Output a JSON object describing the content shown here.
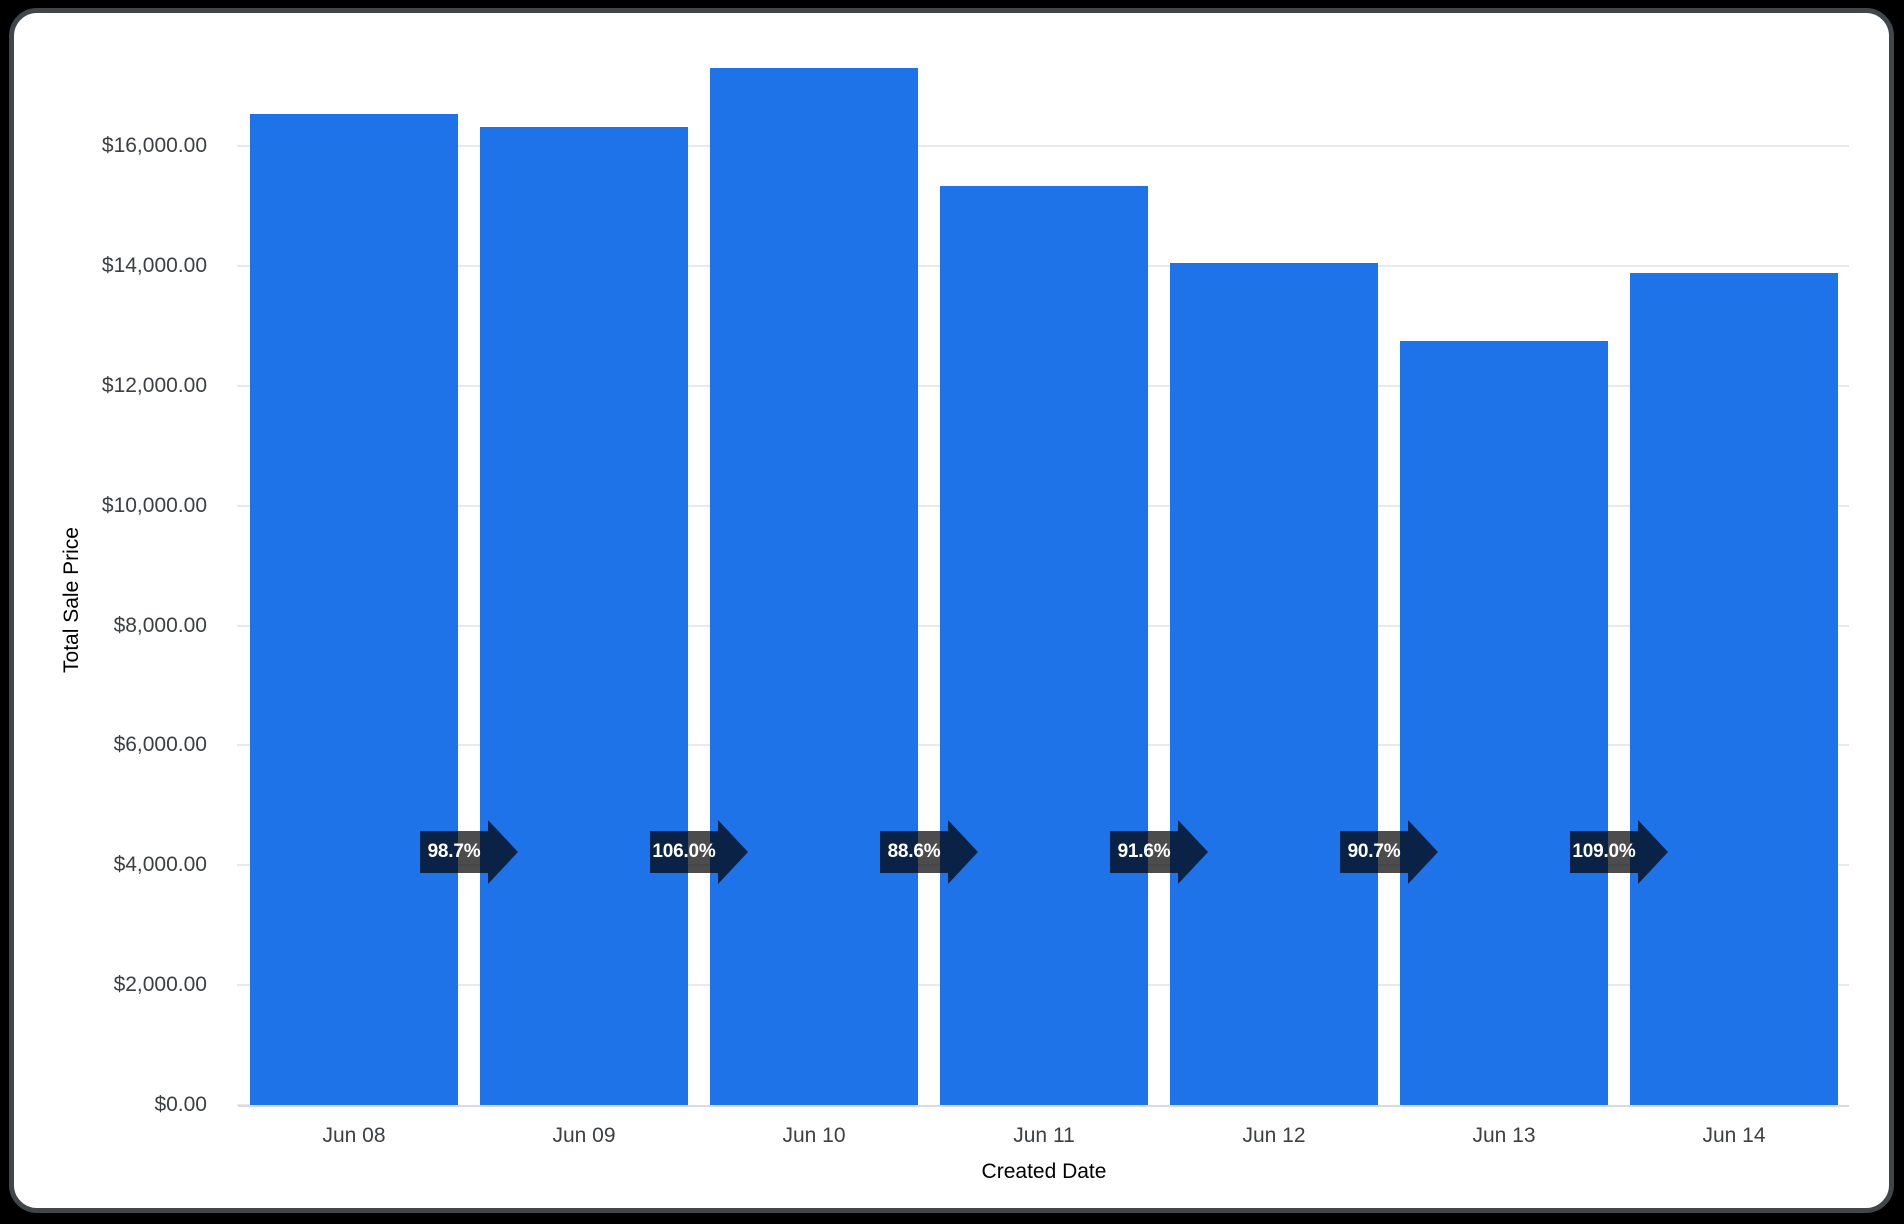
{
  "page": {
    "background": "#000000"
  },
  "card": {
    "background": "#ffffff",
    "border_color": "#41464a"
  },
  "chart_data": {
    "type": "bar",
    "xlabel": "Created Date",
    "ylabel": "Total Sale Price",
    "categories": [
      "Jun 08",
      "Jun 09",
      "Jun 10",
      "Jun 11",
      "Jun 12",
      "Jun 13",
      "Jun 14"
    ],
    "values": [
      16540,
      16325,
      17305,
      15330,
      14045,
      12740,
      13885
    ],
    "period_over_period_labels": [
      "98.7%",
      "106.0%",
      "88.6%",
      "91.6%",
      "90.7%",
      "109.0%"
    ],
    "y_tick_values": [
      0,
      2000,
      4000,
      6000,
      8000,
      10000,
      12000,
      14000,
      16000
    ],
    "y_tick_labels": [
      "$0.00",
      "$2,000.00",
      "$4,000.00",
      "$6,000.00",
      "$8,000.00",
      "$10,000.00",
      "$12,000.00",
      "$14,000.00",
      "$16,000.00"
    ],
    "ylim": [
      0,
      17800
    ],
    "grid": true,
    "legend": false,
    "bar_color": "#1e73e8",
    "arrow_color": "rgba(0, 0, 0, 0.7)",
    "arrow_text_color": "#ffffff",
    "axis_text_color": "#3c4043",
    "gridline_color": "#e7e9ec",
    "baseline_color": "#d8dce0"
  }
}
